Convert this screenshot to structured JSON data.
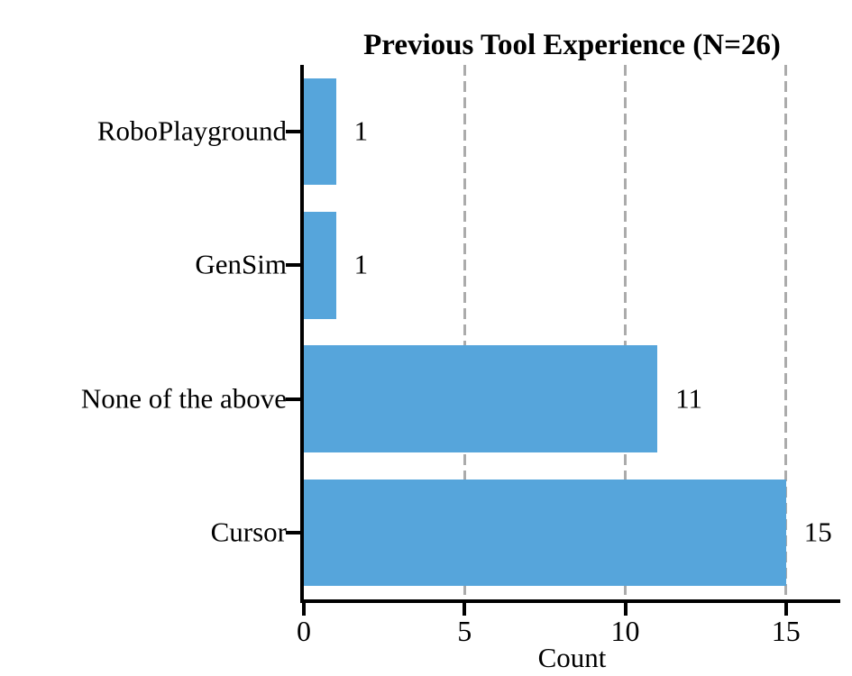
{
  "chart_data": {
    "type": "bar",
    "orientation": "horizontal",
    "title": "Previous Tool Experience (N=26)",
    "xlabel": "Count",
    "categories": [
      "RoboPlayground",
      "GenSim",
      "None of the above",
      "Cursor"
    ],
    "values": [
      1,
      1,
      11,
      15
    ],
    "value_labels": [
      "1",
      "1",
      "11",
      "15"
    ],
    "x_ticks": [
      "0",
      "5",
      "10",
      "15"
    ],
    "x_tick_values": [
      0,
      5,
      10,
      15
    ],
    "xlim": [
      0,
      16.7
    ],
    "grid": {
      "axis": "x",
      "style": "dashed",
      "color": "#ababab",
      "at": [
        5,
        10,
        15
      ]
    },
    "colors": {
      "bar": "#56a5db",
      "axis": "#000000",
      "text": "#000000",
      "background": "#ffffff"
    }
  }
}
